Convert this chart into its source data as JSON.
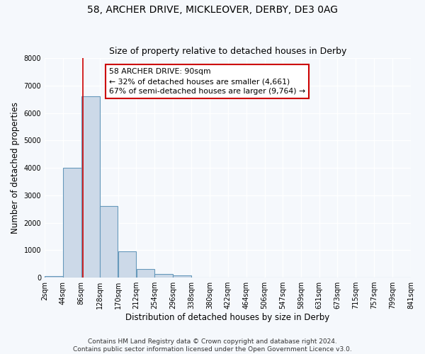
{
  "title_line1": "58, ARCHER DRIVE, MICKLEOVER, DERBY, DE3 0AG",
  "title_line2": "Size of property relative to detached houses in Derby",
  "xlabel": "Distribution of detached houses by size in Derby",
  "ylabel": "Number of detached properties",
  "bin_edges": [
    2,
    44,
    86,
    128,
    170,
    212,
    254,
    296,
    338,
    380,
    422,
    464,
    506,
    547,
    589,
    631,
    673,
    715,
    757,
    799,
    841
  ],
  "bar_heights": [
    60,
    4000,
    6600,
    2600,
    950,
    320,
    140,
    80,
    0,
    0,
    0,
    0,
    0,
    0,
    0,
    0,
    0,
    0,
    0,
    0
  ],
  "bar_color": "#ccd9e8",
  "bar_edge_color": "#6699bb",
  "vline_x": 90,
  "vline_color": "#cc0000",
  "annotation_box_text": "58 ARCHER DRIVE: 90sqm\n← 32% of detached houses are smaller (4,661)\n67% of semi-detached houses are larger (9,764) →",
  "annotation_box_color": "#cc0000",
  "ylim": [
    0,
    8000
  ],
  "yticks": [
    0,
    1000,
    2000,
    3000,
    4000,
    5000,
    6000,
    7000,
    8000
  ],
  "xtick_labels": [
    "2sqm",
    "44sqm",
    "86sqm",
    "128sqm",
    "170sqm",
    "212sqm",
    "254sqm",
    "296sqm",
    "338sqm",
    "380sqm",
    "422sqm",
    "464sqm",
    "506sqm",
    "547sqm",
    "589sqm",
    "631sqm",
    "673sqm",
    "715sqm",
    "757sqm",
    "799sqm",
    "841sqm"
  ],
  "footer_line1": "Contains HM Land Registry data © Crown copyright and database right 2024.",
  "footer_line2": "Contains public sector information licensed under the Open Government Licence v3.0.",
  "background_color": "#f5f8fc",
  "plot_bg_color": "#f5f8fc",
  "grid_color": "#ffffff",
  "title_fontsize": 10,
  "subtitle_fontsize": 9,
  "axis_label_fontsize": 8.5,
  "tick_fontsize": 7,
  "footer_fontsize": 6.5
}
